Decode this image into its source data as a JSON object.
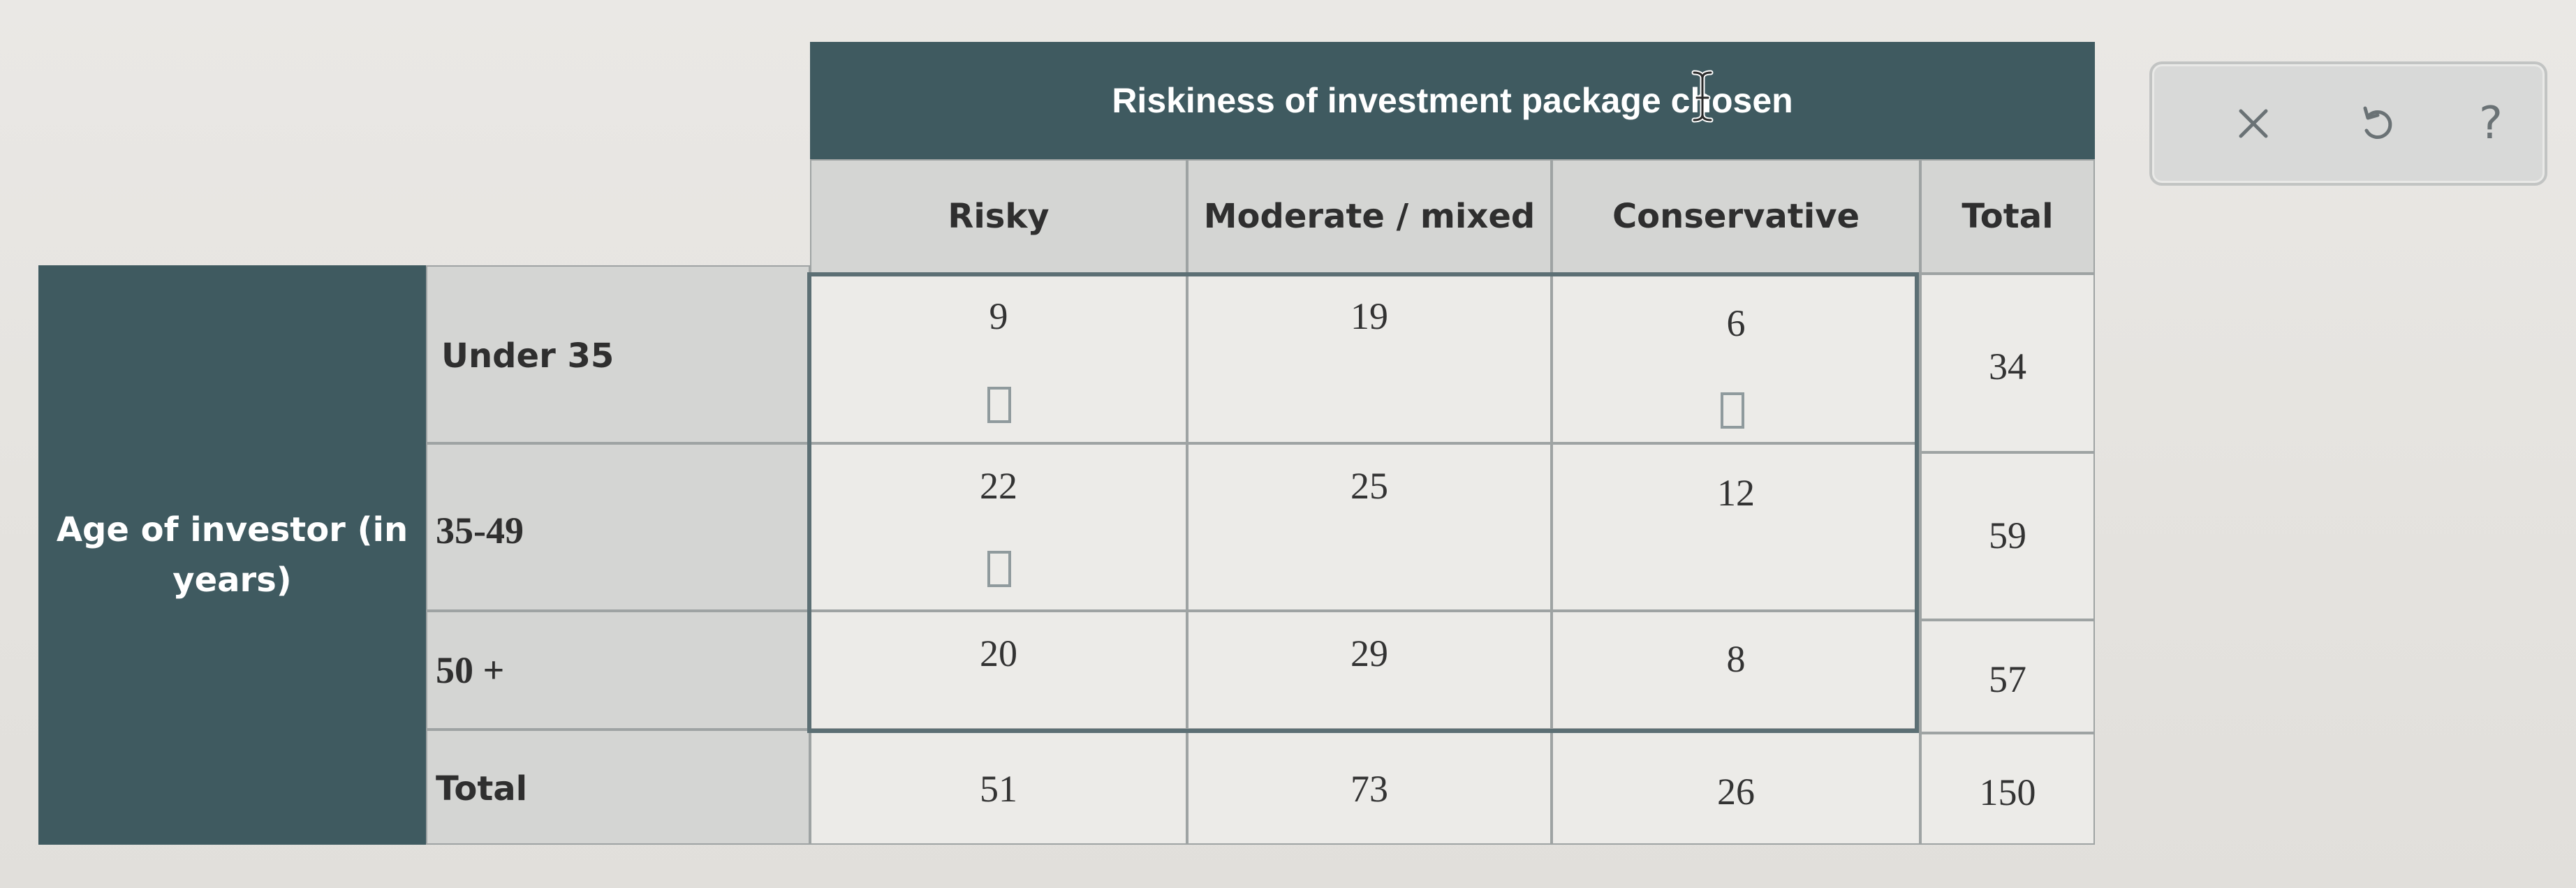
{
  "table": {
    "column_header": "Riskiness of investment package chosen",
    "row_header": "Age of investor (in years)",
    "columns": [
      "Risky",
      "Moderate / mixed",
      "Conservative",
      "Total"
    ],
    "rows": [
      {
        "label": "Under 35",
        "values": [
          "9",
          "19",
          "6"
        ],
        "total": "34"
      },
      {
        "label": "35-49",
        "values": [
          "22",
          "25",
          "12"
        ],
        "total": "59"
      },
      {
        "label": "50 +",
        "values": [
          "20",
          "29",
          "8"
        ],
        "total": "57"
      }
    ],
    "totals_row": {
      "label": "Total",
      "values": [
        "51",
        "73",
        "26"
      ],
      "total": "150"
    }
  },
  "toolbar": {
    "close_icon": "close-icon",
    "undo_icon": "undo-icon",
    "help_label": "?"
  },
  "colors": {
    "header_dark": "#3f5a60",
    "header_gray": "#d4d5d3",
    "cell_bg": "#ecebe8"
  }
}
